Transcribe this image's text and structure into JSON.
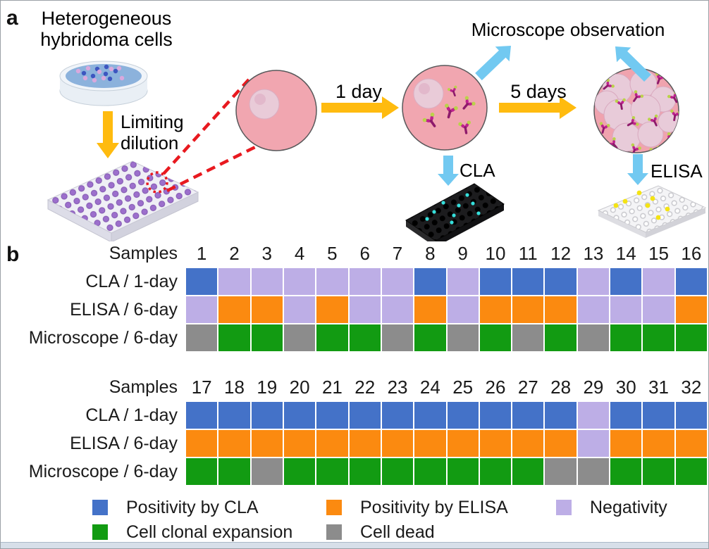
{
  "panel_a": {
    "label": "a",
    "title_line1": "Heterogeneous",
    "title_line2": "hybridoma cells",
    "dilution_label_line1": "Limiting",
    "dilution_label_line2": "dilution",
    "day1_label": "1 day",
    "day5_label": "5 days",
    "microscope_label": "Microscope observation",
    "cla_label": "CLA",
    "elisa_label": "ELISA"
  },
  "panel_b": {
    "label": "b",
    "samples_header": "Samples",
    "legend": [
      {
        "label": "Positivity by CLA",
        "color_key": "cla_positive"
      },
      {
        "label": "Positivity by ELISA",
        "color_key": "elisa_positive"
      },
      {
        "label": "Negativity",
        "color_key": "negative"
      },
      {
        "label": "Cell clonal expansion",
        "color_key": "expansion"
      },
      {
        "label": "Cell dead",
        "color_key": "dead"
      }
    ]
  },
  "colors": {
    "cla_positive": "#4472C8",
    "elisa_positive": "#FB8A10",
    "negative": "#BDAEE6",
    "expansion": "#129B12",
    "dead": "#8C8C8C"
  },
  "chart_data": {
    "type": "heatmap",
    "value_meaning": {
      "cla_positive": "Positivity by CLA",
      "elisa_positive": "Positivity by ELISA",
      "negative": "Negativity",
      "expansion": "Cell clonal expansion",
      "dead": "Cell dead"
    },
    "tables": [
      {
        "samples": [
          "1",
          "2",
          "3",
          "4",
          "5",
          "6",
          "7",
          "8",
          "9",
          "10",
          "11",
          "12",
          "13",
          "14",
          "15",
          "16"
        ],
        "rows": [
          {
            "label": "CLA / 1-day",
            "values": [
              "cla_positive",
              "negative",
              "negative",
              "negative",
              "negative",
              "negative",
              "negative",
              "cla_positive",
              "negative",
              "cla_positive",
              "cla_positive",
              "cla_positive",
              "negative",
              "cla_positive",
              "negative",
              "cla_positive"
            ]
          },
          {
            "label": "ELISA / 6-day",
            "values": [
              "negative",
              "elisa_positive",
              "elisa_positive",
              "negative",
              "elisa_positive",
              "negative",
              "negative",
              "elisa_positive",
              "negative",
              "elisa_positive",
              "elisa_positive",
              "elisa_positive",
              "negative",
              "negative",
              "negative",
              "elisa_positive"
            ]
          },
          {
            "label": "Microscope / 6-day",
            "values": [
              "dead",
              "expansion",
              "expansion",
              "dead",
              "expansion",
              "expansion",
              "dead",
              "expansion",
              "dead",
              "expansion",
              "dead",
              "expansion",
              "dead",
              "expansion",
              "expansion",
              "expansion"
            ]
          }
        ]
      },
      {
        "samples": [
          "17",
          "18",
          "19",
          "20",
          "21",
          "22",
          "23",
          "24",
          "25",
          "26",
          "27",
          "28",
          "29",
          "30",
          "31",
          "32"
        ],
        "rows": [
          {
            "label": "CLA / 1-day",
            "values": [
              "cla_positive",
              "cla_positive",
              "cla_positive",
              "cla_positive",
              "cla_positive",
              "cla_positive",
              "cla_positive",
              "cla_positive",
              "cla_positive",
              "cla_positive",
              "cla_positive",
              "cla_positive",
              "negative",
              "cla_positive",
              "cla_positive",
              "cla_positive"
            ]
          },
          {
            "label": "ELISA / 6-day",
            "values": [
              "elisa_positive",
              "elisa_positive",
              "elisa_positive",
              "elisa_positive",
              "elisa_positive",
              "elisa_positive",
              "elisa_positive",
              "elisa_positive",
              "elisa_positive",
              "elisa_positive",
              "elisa_positive",
              "elisa_positive",
              "negative",
              "elisa_positive",
              "elisa_positive",
              "elisa_positive"
            ]
          },
          {
            "label": "Microscope / 6-day",
            "values": [
              "expansion",
              "expansion",
              "dead",
              "expansion",
              "expansion",
              "expansion",
              "expansion",
              "expansion",
              "expansion",
              "expansion",
              "expansion",
              "dead",
              "dead",
              "expansion",
              "expansion",
              "expansion"
            ]
          }
        ]
      }
    ]
  }
}
